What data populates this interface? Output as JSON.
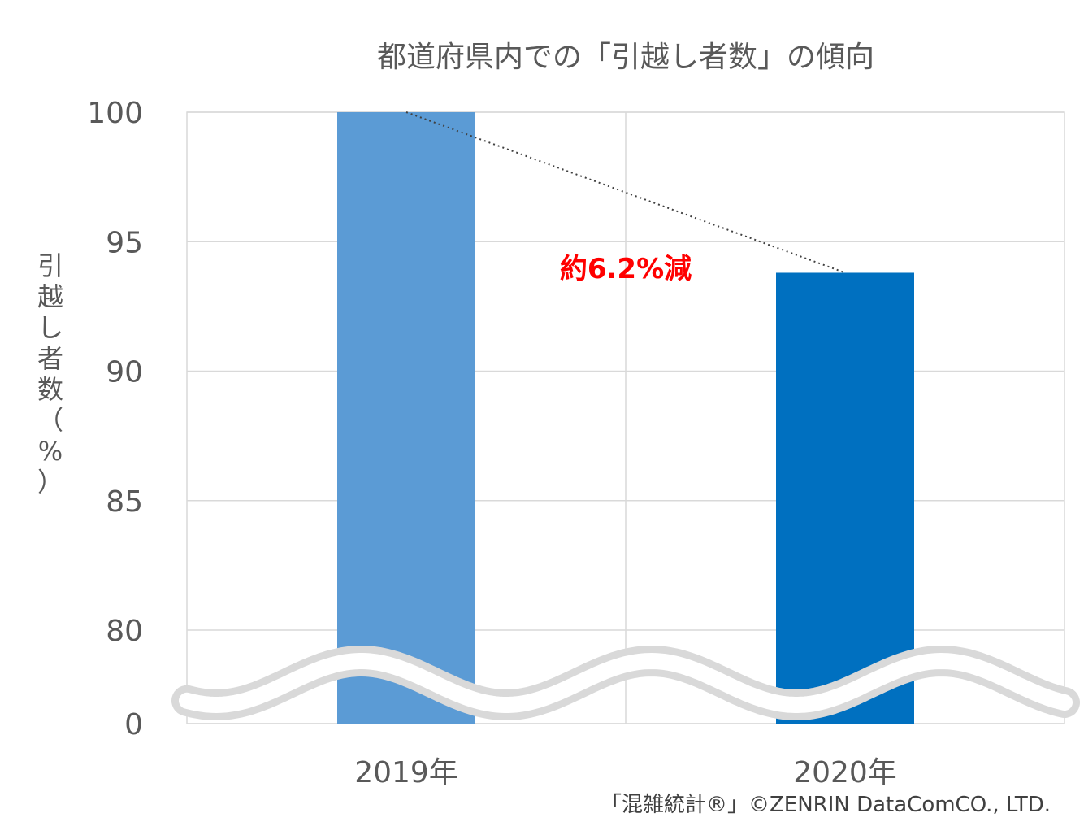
{
  "chart_data": {
    "type": "bar",
    "title": "都道府県内での「引越し者数」の傾向",
    "ylabel": "引越し者数（%）",
    "xlabel": "",
    "categories": [
      "2019年",
      "2020年"
    ],
    "values": [
      100,
      93.8
    ],
    "ylim": [
      0,
      100
    ],
    "axis_break": {
      "lower": 0,
      "upper": 80
    },
    "yticks": [
      0,
      80,
      85,
      90,
      95,
      100
    ],
    "grid": true,
    "colors": [
      "#5b9bd5",
      "#0070c0"
    ],
    "annotation": {
      "text": "約6.2%減",
      "color": "#ff0000"
    },
    "credit": "「混雑統計®」©ZENRIN DataComCO., LTD."
  }
}
